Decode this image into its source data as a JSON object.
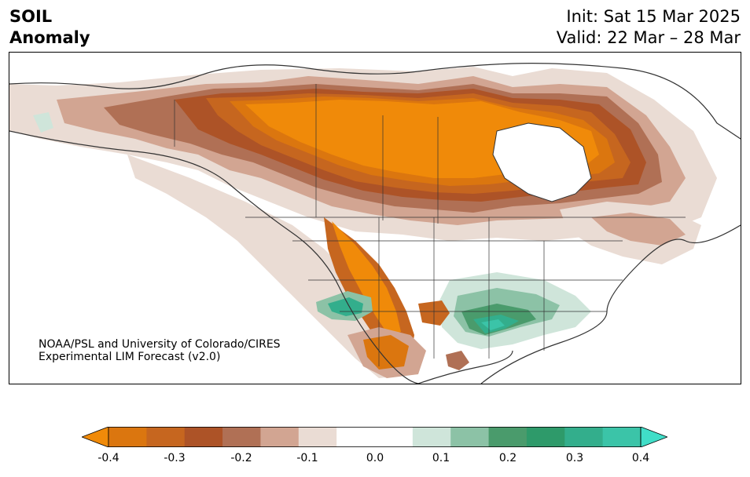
{
  "title": {
    "line1": "SOIL",
    "line2": "Anomaly"
  },
  "dates": {
    "init": "Init: Sat 15 Mar 2025",
    "valid": "Valid: 22 Mar – 28 Mar"
  },
  "credit": {
    "line1": "NOAA/PSL and University of Colorado/CIRES",
    "line2": "Experimental LIM Forecast (v2.0)"
  },
  "colorbar": {
    "ticks": [
      "-0.4",
      "-0.3",
      "-0.2",
      "-0.1",
      "0.0",
      "0.1",
      "0.2",
      "0.3",
      "0.4"
    ],
    "colors": [
      "#f08a09",
      "#db760f",
      "#c6661f",
      "#ad5327",
      "#b07055",
      "#d2a592",
      "#eadcd4",
      "#ffffff",
      "#ffffff",
      "#cfe5da",
      "#8cc2a6",
      "#4a9b6c",
      "#2e9a6a",
      "#33ae8c",
      "#3bc4a8",
      "#40dec8"
    ]
  },
  "legend_colors": {
    "dry_strong": "#f08a09",
    "dry_mid": "#c6661f",
    "dry_light": "#eadcd4",
    "wet_light": "#cfe5da",
    "wet_mid": "#4a9b6c",
    "wet_strong": "#3bc4a8"
  }
}
